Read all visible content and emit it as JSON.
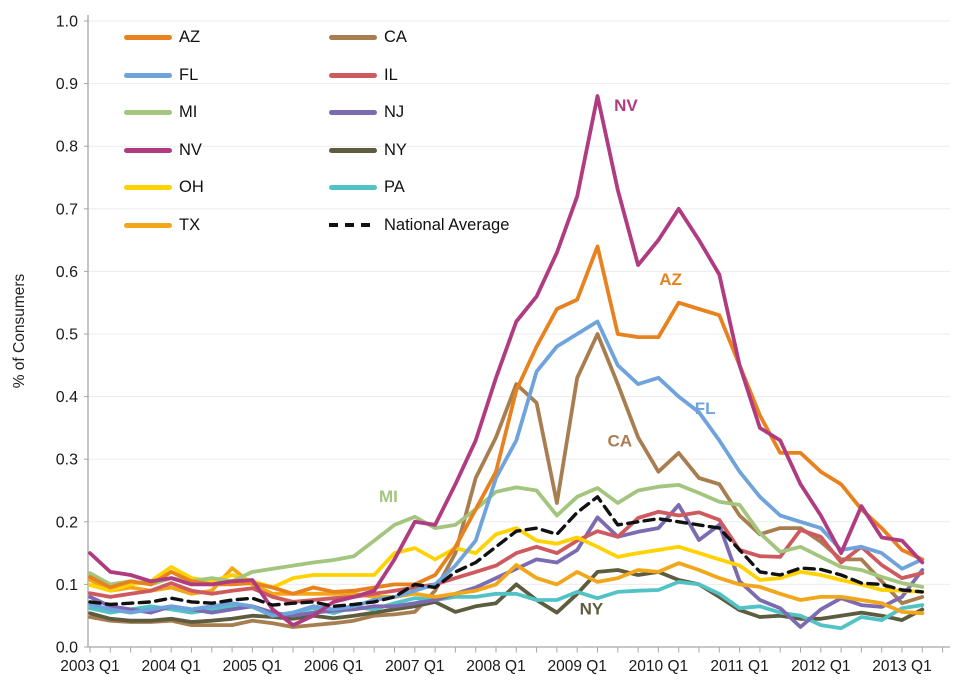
{
  "chart_data": {
    "type": "line",
    "title": "",
    "xlabel": "",
    "ylabel": "% of Consumers",
    "ylim": [
      0.0,
      1.0
    ],
    "ytick_step": 0.1,
    "grid": "horizontal-faint",
    "legend_position": "top-left-two-columns",
    "x_start": "2003 Q1",
    "x_end": "2013 Q2",
    "n_points": 42,
    "x_tick_labels": [
      "2003 Q1",
      "2004 Q1",
      "2005 Q1",
      "2006 Q1",
      "2007 Q1",
      "2008 Q1",
      "2009 Q1",
      "2010 Q1",
      "2011 Q1",
      "2012 Q1",
      "2013 Q1"
    ],
    "series": [
      {
        "name": "AZ",
        "color": "#E8821E",
        "dashed": false,
        "values": [
          0.112,
          0.095,
          0.105,
          0.1,
          0.12,
          0.105,
          0.1,
          0.1,
          0.102,
          0.095,
          0.085,
          0.095,
          0.088,
          0.09,
          0.095,
          0.1,
          0.1,
          0.115,
          0.16,
          0.22,
          0.28,
          0.41,
          0.48,
          0.54,
          0.555,
          0.64,
          0.5,
          0.495,
          0.495,
          0.55,
          0.54,
          0.53,
          0.45,
          0.37,
          0.31,
          0.31,
          0.28,
          0.26,
          0.22,
          0.19,
          0.155,
          0.14
        ]
      },
      {
        "name": "CA",
        "color": "#A87E50",
        "dashed": false,
        "values": [
          0.048,
          0.042,
          0.04,
          0.04,
          0.042,
          0.035,
          0.035,
          0.035,
          0.042,
          0.038,
          0.032,
          0.035,
          0.038,
          0.042,
          0.05,
          0.052,
          0.056,
          0.09,
          0.15,
          0.27,
          0.335,
          0.42,
          0.39,
          0.23,
          0.43,
          0.5,
          0.42,
          0.335,
          0.28,
          0.31,
          0.27,
          0.26,
          0.21,
          0.18,
          0.19,
          0.19,
          0.168,
          0.14,
          0.14,
          0.105,
          0.07,
          0.08
        ]
      },
      {
        "name": "FL",
        "color": "#6FA3DC",
        "dashed": false,
        "values": [
          0.068,
          0.06,
          0.055,
          0.06,
          0.065,
          0.06,
          0.065,
          0.07,
          0.065,
          0.05,
          0.055,
          0.065,
          0.06,
          0.065,
          0.075,
          0.08,
          0.09,
          0.1,
          0.13,
          0.17,
          0.27,
          0.33,
          0.44,
          0.48,
          0.5,
          0.52,
          0.45,
          0.42,
          0.43,
          0.4,
          0.375,
          0.33,
          0.28,
          0.24,
          0.21,
          0.2,
          0.19,
          0.155,
          0.16,
          0.15,
          0.125,
          0.14
        ]
      },
      {
        "name": "IL",
        "color": "#CE5A5F",
        "dashed": false,
        "values": [
          0.086,
          0.08,
          0.085,
          0.09,
          0.102,
          0.09,
          0.085,
          0.09,
          0.094,
          0.08,
          0.072,
          0.075,
          0.078,
          0.08,
          0.085,
          0.09,
          0.095,
          0.1,
          0.11,
          0.12,
          0.13,
          0.15,
          0.16,
          0.15,
          0.17,
          0.185,
          0.176,
          0.206,
          0.216,
          0.21,
          0.215,
          0.203,
          0.155,
          0.145,
          0.144,
          0.187,
          0.176,
          0.135,
          0.16,
          0.131,
          0.11,
          0.118
        ]
      },
      {
        "name": "MI",
        "color": "#A3C57E",
        "dashed": false,
        "values": [
          0.118,
          0.1,
          0.105,
          0.1,
          0.11,
          0.105,
          0.11,
          0.105,
          0.12,
          0.125,
          0.13,
          0.135,
          0.139,
          0.145,
          0.17,
          0.195,
          0.208,
          0.19,
          0.195,
          0.22,
          0.248,
          0.255,
          0.25,
          0.21,
          0.24,
          0.254,
          0.23,
          0.25,
          0.256,
          0.259,
          0.246,
          0.232,
          0.227,
          0.182,
          0.152,
          0.16,
          0.144,
          0.128,
          0.123,
          0.112,
          0.102,
          0.096
        ]
      },
      {
        "name": "NJ",
        "color": "#7C6BB0",
        "dashed": false,
        "values": [
          0.08,
          0.065,
          0.06,
          0.055,
          0.065,
          0.06,
          0.055,
          0.06,
          0.065,
          0.055,
          0.05,
          0.055,
          0.058,
          0.06,
          0.065,
          0.065,
          0.07,
          0.075,
          0.085,
          0.095,
          0.11,
          0.125,
          0.14,
          0.135,
          0.155,
          0.207,
          0.176,
          0.184,
          0.19,
          0.227,
          0.171,
          0.195,
          0.105,
          0.075,
          0.062,
          0.032,
          0.06,
          0.078,
          0.067,
          0.064,
          0.08,
          0.123
        ]
      },
      {
        "name": "NV",
        "color": "#AF3B80",
        "dashed": false,
        "values": [
          0.15,
          0.12,
          0.115,
          0.105,
          0.11,
          0.1,
          0.1,
          0.105,
          0.107,
          0.06,
          0.035,
          0.05,
          0.072,
          0.08,
          0.09,
          0.14,
          0.2,
          0.195,
          0.26,
          0.33,
          0.43,
          0.52,
          0.56,
          0.63,
          0.72,
          0.88,
          0.73,
          0.61,
          0.65,
          0.7,
          0.65,
          0.595,
          0.45,
          0.35,
          0.33,
          0.26,
          0.21,
          0.15,
          0.225,
          0.175,
          0.17,
          0.135
        ]
      },
      {
        "name": "NY",
        "color": "#5E5C3E",
        "dashed": false,
        "values": [
          0.054,
          0.045,
          0.042,
          0.042,
          0.045,
          0.04,
          0.042,
          0.045,
          0.05,
          0.048,
          0.045,
          0.05,
          0.046,
          0.05,
          0.055,
          0.06,
          0.065,
          0.072,
          0.056,
          0.065,
          0.07,
          0.1,
          0.075,
          0.055,
          0.085,
          0.12,
          0.123,
          0.115,
          0.12,
          0.107,
          0.1,
          0.08,
          0.059,
          0.048,
          0.05,
          0.045,
          0.045,
          0.05,
          0.055,
          0.05,
          0.043,
          0.06
        ]
      },
      {
        "name": "OH",
        "color": "#FFD200",
        "dashed": false,
        "values": [
          0.099,
          0.09,
          0.1,
          0.105,
          0.128,
          0.11,
          0.105,
          0.115,
          0.105,
          0.095,
          0.11,
          0.115,
          0.115,
          0.115,
          0.115,
          0.15,
          0.158,
          0.14,
          0.158,
          0.15,
          0.18,
          0.19,
          0.17,
          0.165,
          0.175,
          0.16,
          0.144,
          0.15,
          0.155,
          0.16,
          0.15,
          0.14,
          0.13,
          0.107,
          0.11,
          0.12,
          0.115,
          0.107,
          0.1,
          0.091,
          0.09,
          0.088
        ]
      },
      {
        "name": "PA",
        "color": "#52C3C5",
        "dashed": false,
        "values": [
          0.062,
          0.055,
          0.06,
          0.065,
          0.06,
          0.055,
          0.06,
          0.065,
          0.064,
          0.05,
          0.055,
          0.062,
          0.054,
          0.064,
          0.06,
          0.07,
          0.078,
          0.075,
          0.08,
          0.08,
          0.085,
          0.085,
          0.075,
          0.075,
          0.088,
          0.078,
          0.088,
          0.09,
          0.091,
          0.104,
          0.1,
          0.085,
          0.062,
          0.065,
          0.055,
          0.05,
          0.035,
          0.03,
          0.048,
          0.043,
          0.062,
          0.067
        ]
      },
      {
        "name": "TX",
        "color": "#F2A71B",
        "dashed": false,
        "values": [
          0.107,
          0.09,
          0.095,
          0.09,
          0.095,
          0.085,
          0.09,
          0.126,
          0.1,
          0.085,
          0.085,
          0.085,
          0.085,
          0.085,
          0.08,
          0.08,
          0.085,
          0.08,
          0.085,
          0.09,
          0.1,
          0.131,
          0.11,
          0.1,
          0.12,
          0.104,
          0.11,
          0.123,
          0.12,
          0.134,
          0.123,
          0.11,
          0.1,
          0.096,
          0.085,
          0.075,
          0.08,
          0.08,
          0.075,
          0.07,
          0.056,
          0.054
        ]
      },
      {
        "name": "National Average",
        "color": "#111111",
        "dashed": true,
        "values": [
          0.072,
          0.068,
          0.07,
          0.072,
          0.078,
          0.072,
          0.07,
          0.075,
          0.078,
          0.067,
          0.07,
          0.072,
          0.065,
          0.068,
          0.072,
          0.08,
          0.1,
          0.095,
          0.12,
          0.135,
          0.16,
          0.185,
          0.19,
          0.18,
          0.215,
          0.24,
          0.195,
          0.2,
          0.205,
          0.2,
          0.195,
          0.19,
          0.155,
          0.12,
          0.115,
          0.126,
          0.124,
          0.115,
          0.102,
          0.1,
          0.091,
          0.088
        ]
      }
    ],
    "draw_order": [
      "CA",
      "NY",
      "PA",
      "NJ",
      "TX",
      "IL",
      "OH",
      "MI",
      "FL",
      "AZ",
      "NV",
      "National Average"
    ],
    "annotations": [
      {
        "text": "NV",
        "color": "#AF3B80",
        "xi": 26.4,
        "v": 0.856
      },
      {
        "text": "AZ",
        "color": "#E8821E",
        "xi": 28.6,
        "v": 0.578
      },
      {
        "text": "FL",
        "color": "#6FA3DC",
        "xi": 30.3,
        "v": 0.372
      },
      {
        "text": "CA",
        "color": "#A87E50",
        "xi": 26.1,
        "v": 0.32
      },
      {
        "text": "MI",
        "color": "#A3C57E",
        "xi": 14.7,
        "v": 0.232
      },
      {
        "text": "NY",
        "color": "#5E5C3E",
        "xi": 24.7,
        "v": 0.052
      }
    ]
  },
  "legend": {
    "columns": [
      [
        "AZ",
        "FL",
        "MI",
        "NV",
        "OH",
        "TX"
      ],
      [
        "CA",
        "IL",
        "NJ",
        "NY",
        "PA",
        "National Average"
      ]
    ]
  }
}
